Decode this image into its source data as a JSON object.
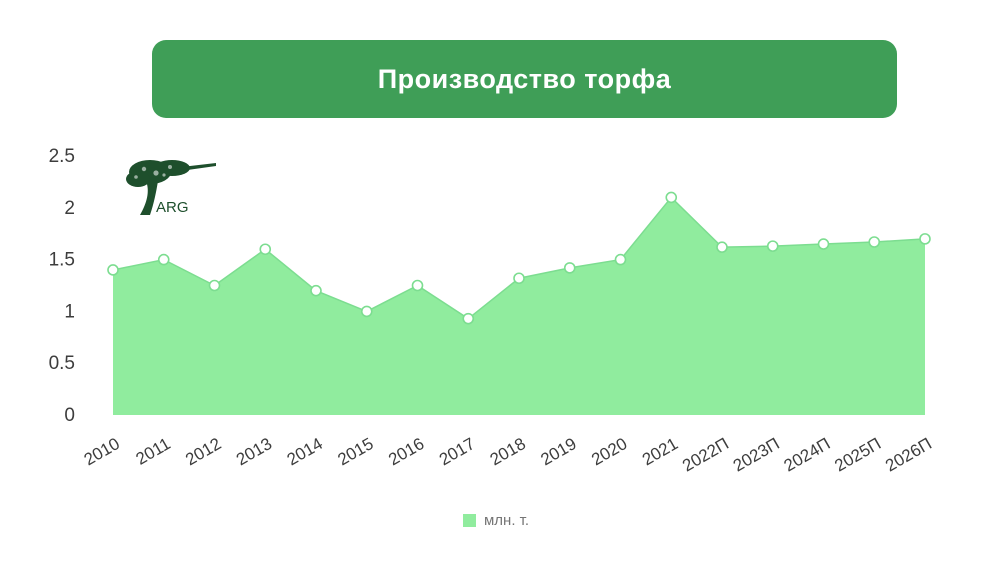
{
  "title": "Производство торфа",
  "logo": {
    "text": "ARG"
  },
  "legend": {
    "label": "млн. т."
  },
  "colors": {
    "banner": "#3f9e57",
    "area_fill": "#90ec9e",
    "area_stroke": "#7cdd90",
    "point_fill": "#ffffff",
    "point_stroke": "#7cdd90",
    "axis_text": "#3d3d3d",
    "logo_green": "#1e4f2c"
  },
  "chart_data": {
    "type": "area",
    "title": "Производство торфа",
    "categories": [
      "2010",
      "2011",
      "2012",
      "2013",
      "2014",
      "2015",
      "2016",
      "2017",
      "2018",
      "2019",
      "2020",
      "2021",
      "2022П",
      "2023П",
      "2024П",
      "2025П",
      "2026П"
    ],
    "values": [
      1.4,
      1.5,
      1.25,
      1.6,
      1.2,
      1.0,
      1.25,
      0.93,
      1.32,
      1.42,
      1.5,
      2.1,
      1.62,
      1.63,
      1.65,
      1.67,
      1.7
    ],
    "xlabel": "",
    "ylabel": "",
    "ylim": [
      0,
      2.5
    ],
    "yticks": [
      "0",
      "0.5",
      "1",
      "1.5",
      "2",
      "2.5"
    ],
    "grid": false,
    "legend_entries": [
      "млн. т."
    ],
    "legend_position": "bottom"
  }
}
